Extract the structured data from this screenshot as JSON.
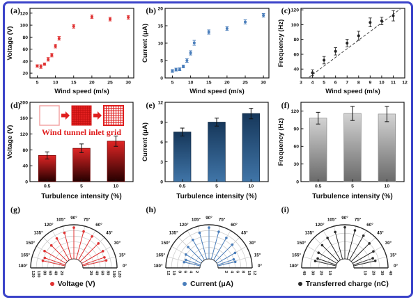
{
  "figure": {
    "border_color": "#3b43c9",
    "background": "#ffffff"
  },
  "charts": [
    {
      "id": "a",
      "panel_label": "(a)",
      "type": "scatter",
      "color": "#e03232",
      "xlabel": "Wind speed (m/s)",
      "ylabel": "Voltage (V)",
      "xlim": [
        3,
        31.5
      ],
      "ylim": [
        12,
        128
      ],
      "xticks": [
        5,
        10,
        15,
        20,
        25,
        30
      ],
      "yticks": [
        20,
        40,
        60,
        80,
        100,
        120
      ],
      "x": [
        5,
        6,
        7,
        8,
        9,
        10,
        11,
        15,
        20,
        25,
        30
      ],
      "y": [
        32,
        31,
        35,
        43,
        50,
        65,
        78,
        98,
        114,
        110,
        113
      ],
      "yerr": [
        2,
        3,
        2,
        3,
        3,
        3,
        3,
        3,
        3,
        3,
        3
      ]
    },
    {
      "id": "b",
      "panel_label": "(b)",
      "type": "scatter",
      "color": "#4a7ebb",
      "xlabel": "Wind speed (m/s)",
      "ylabel": "Current (μA)",
      "xlim": [
        3,
        31.5
      ],
      "ylim": [
        0,
        20
      ],
      "xticks": [
        5,
        10,
        15,
        20,
        25,
        30
      ],
      "yticks": [
        0,
        5,
        10,
        15,
        20
      ],
      "x": [
        5,
        6,
        7,
        8,
        9,
        10,
        11,
        15,
        20,
        25,
        30
      ],
      "y": [
        2.0,
        2.4,
        2.5,
        3.3,
        5.0,
        7.2,
        10.1,
        13.2,
        14.2,
        16.1,
        18.0
      ],
      "yerr": [
        0.4,
        0.4,
        0.4,
        0.4,
        0.5,
        0.6,
        0.7,
        0.6,
        0.5,
        0.6,
        0.5
      ]
    },
    {
      "id": "c",
      "panel_label": "(c)",
      "type": "scatter",
      "color": "#222222",
      "xlabel": "Wind speed (m/s)",
      "ylabel": "Frequency (Hz)",
      "xlim": [
        3,
        12
      ],
      "ylim": [
        28,
        122
      ],
      "xticks": [
        3,
        4,
        5,
        6,
        7,
        8,
        9,
        10,
        11,
        12
      ],
      "yticks": [
        40,
        60,
        80,
        100,
        120
      ],
      "x": [
        4,
        5,
        6,
        7,
        8,
        9,
        10,
        11
      ],
      "y": [
        35,
        52,
        64,
        75,
        85,
        103,
        105,
        112
      ],
      "yerr": [
        4,
        5,
        5,
        5,
        6,
        6,
        5,
        7
      ],
      "trend": [
        [
          3.7,
          29
        ],
        [
          11.6,
          121
        ]
      ]
    },
    {
      "id": "d",
      "panel_label": "(d)",
      "type": "bar",
      "xlabel": "Turbulence intensity (%)",
      "ylabel": "Voltage (V)",
      "categories": [
        "0.5",
        "5",
        "10"
      ],
      "values": [
        66,
        84,
        102
      ],
      "errors": [
        9,
        11,
        13
      ],
      "ylim": [
        0,
        200
      ],
      "yticks": [
        0,
        40,
        80,
        120,
        160,
        200
      ],
      "gradient": [
        "#e02525",
        "#250000"
      ],
      "bar_stroke": "#6b0000",
      "inset_text": "Wind tunnel inlet grid",
      "inset_color": "#e01f1f"
    },
    {
      "id": "e",
      "panel_label": "(e)",
      "type": "bar",
      "xlabel": "Turbulence intensity (%)",
      "ylabel": "Current (μA)",
      "categories": [
        "0.5",
        "5",
        "10"
      ],
      "values": [
        7.5,
        9.0,
        10.3
      ],
      "errors": [
        0.6,
        0.6,
        0.8
      ],
      "ylim": [
        0,
        12
      ],
      "yticks": [
        0,
        3,
        6,
        9,
        12
      ],
      "gradient": [
        "#16375a",
        "#4075a8"
      ],
      "bar_stroke": "#102843"
    },
    {
      "id": "f",
      "panel_label": "(f)",
      "type": "bar",
      "xlabel": "Turbulence intensity (%)",
      "ylabel": "Frequency (Hz)",
      "categories": [
        "0.5",
        "5",
        "10"
      ],
      "values": [
        108,
        116,
        115
      ],
      "errors": [
        10,
        12,
        13
      ],
      "ylim": [
        0,
        135
      ],
      "yticks": [
        0,
        30,
        60,
        90,
        120
      ],
      "gradient": [
        "#d3d3d3",
        "#6a6a6a"
      ],
      "bar_stroke": "#8a8a8a"
    },
    {
      "id": "g",
      "panel_label": "(g)",
      "type": "polar",
      "color": "#e03232",
      "legend": "Voltage (V)",
      "rmax": 120,
      "rticks": [
        20,
        40,
        60,
        80,
        100,
        120
      ],
      "angle_labels": [
        0,
        15,
        30,
        45,
        60,
        75,
        90,
        105,
        120,
        135,
        150,
        165,
        180
      ],
      "angles": [
        13,
        19,
        30,
        45,
        60,
        75,
        90,
        105,
        120,
        135,
        150,
        161,
        167
      ],
      "values": [
        85,
        82,
        86,
        90,
        96,
        101,
        110,
        96,
        88,
        80,
        87,
        76,
        80
      ]
    },
    {
      "id": "h",
      "panel_label": "(h)",
      "type": "polar",
      "color": "#4a7ebb",
      "legend": "Current (μA)",
      "rmax": 12,
      "rticks": [
        2,
        4,
        6,
        8,
        10,
        12
      ],
      "angle_labels": [
        0,
        15,
        30,
        45,
        60,
        75,
        90,
        105,
        120,
        135,
        150,
        165,
        180
      ],
      "angles": [
        13,
        19,
        30,
        45,
        60,
        75,
        90,
        105,
        120,
        135,
        150,
        161,
        167
      ],
      "values": [
        6.3,
        6.0,
        7.4,
        8.4,
        9.0,
        10.0,
        11.0,
        9.6,
        8.2,
        7.2,
        6.2,
        5.4,
        5.8
      ]
    },
    {
      "id": "i",
      "panel_label": "(i)",
      "type": "polar",
      "color": "#2a2a2a",
      "legend": "Transferred charge (nC)",
      "rmax": 40,
      "rticks": [
        10,
        20,
        30,
        40
      ],
      "angle_labels": [
        0,
        15,
        30,
        45,
        60,
        75,
        90,
        105,
        120,
        135,
        150,
        165,
        180
      ],
      "angles": [
        13,
        19,
        30,
        45,
        60,
        75,
        90,
        105,
        120,
        135,
        150,
        161,
        167
      ],
      "values": [
        26,
        24,
        28,
        30,
        33,
        35,
        37,
        33,
        30,
        27,
        25,
        23,
        25
      ]
    }
  ]
}
